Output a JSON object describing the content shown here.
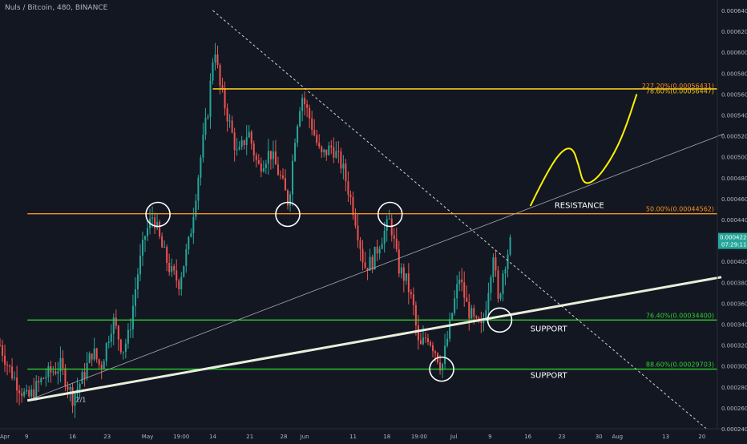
{
  "chart_data": {
    "type": "candlestick",
    "title": "Nuls / Bitcoin, 480, BINANCE",
    "ylim": [
      0.00024,
      0.00065
    ],
    "grid": false,
    "colors": {
      "background": "#131722",
      "up": "#26a69a",
      "down": "#ef5350",
      "axis_text": "#b2b5be",
      "resistance_line": "#f7931a",
      "fib_top_line": "#f5c518",
      "support_line": "#2fce2f",
      "trendline": "#e8eedb",
      "projection": "#fff200",
      "price_badge": "#26a69a",
      "circle": "#ffffff"
    },
    "y_ticks": [
      "0.00064000",
      "0.00062000",
      "0.00060000",
      "0.00058000",
      "0.00056000",
      "0.00054000",
      "0.00052000",
      "0.00050000",
      "0.00048000",
      "0.00046000",
      "0.00044000",
      "0.00042000",
      "0.00040000",
      "0.00038000",
      "0.00036000",
      "0.00034000",
      "0.00032000",
      "0.00030000",
      "0.00028000",
      "0.00026000",
      "0.00024000"
    ],
    "x_ticks": [
      {
        "label": "Apr",
        "t": 0
      },
      {
        "label": "9",
        "t": 33
      },
      {
        "label": "16",
        "t": 90
      },
      {
        "label": "23",
        "t": 133
      },
      {
        "label": "May",
        "t": 183
      },
      {
        "label": "19:00",
        "t": 225
      },
      {
        "label": "14",
        "t": 264
      },
      {
        "label": "21",
        "t": 310
      },
      {
        "label": "28",
        "t": 352
      },
      {
        "label": "Jun",
        "t": 378
      },
      {
        "label": "11",
        "t": 438
      },
      {
        "label": "18",
        "t": 480
      },
      {
        "label": "19:00",
        "t": 520
      },
      {
        "label": "Jul",
        "t": 563
      },
      {
        "label": "9",
        "t": 608
      },
      {
        "label": "16",
        "t": 655
      },
      {
        "label": "23",
        "t": 697
      },
      {
        "label": "30",
        "t": 743
      },
      {
        "label": "Aug",
        "t": 766
      },
      {
        "label": "13",
        "t": 826
      },
      {
        "label": "20",
        "t": 871
      }
    ],
    "t_range": [
      0,
      890
    ],
    "price_path": [
      [
        0,
        0.00032
      ],
      [
        10,
        0.0003
      ],
      [
        20,
        0.000285
      ],
      [
        34,
        0.000268
      ],
      [
        55,
        0.00029
      ],
      [
        75,
        0.0003
      ],
      [
        90,
        0.00027
      ],
      [
        102,
        0.000288
      ],
      [
        115,
        0.000315
      ],
      [
        125,
        0.000298
      ],
      [
        140,
        0.000345
      ],
      [
        152,
        0.000315
      ],
      [
        160,
        0.00033
      ],
      [
        170,
        0.000385
      ],
      [
        180,
        0.000425
      ],
      [
        190,
        0.000445
      ],
      [
        200,
        0.000415
      ],
      [
        212,
        0.00039
      ],
      [
        222,
        0.00038
      ],
      [
        235,
        0.00042
      ],
      [
        242,
        0.00046
      ],
      [
        250,
        0.000505
      ],
      [
        258,
        0.000545
      ],
      [
        266,
        0.00061
      ],
      [
        272,
        0.00057
      ],
      [
        282,
        0.00054
      ],
      [
        295,
        0.0005
      ],
      [
        308,
        0.000525
      ],
      [
        320,
        0.00049
      ],
      [
        335,
        0.000505
      ],
      [
        348,
        0.00048
      ],
      [
        358,
        0.000455
      ],
      [
        366,
        0.00052
      ],
      [
        374,
        0.00056
      ],
      [
        385,
        0.000535
      ],
      [
        398,
        0.0005
      ],
      [
        412,
        0.00051
      ],
      [
        425,
        0.00049
      ],
      [
        440,
        0.000445
      ],
      [
        452,
        0.000395
      ],
      [
        462,
        0.0004
      ],
      [
        472,
        0.00042
      ],
      [
        484,
        0.00044
      ],
      [
        494,
        0.000395
      ],
      [
        505,
        0.00038
      ],
      [
        513,
        0.000355
      ],
      [
        520,
        0.000315
      ],
      [
        530,
        0.00033
      ],
      [
        540,
        0.000315
      ],
      [
        548,
        0.000298
      ],
      [
        556,
        0.00033
      ],
      [
        562,
        0.000355
      ],
      [
        570,
        0.000385
      ],
      [
        580,
        0.000355
      ],
      [
        590,
        0.00034
      ],
      [
        598,
        0.000335
      ],
      [
        605,
        0.00037
      ],
      [
        612,
        0.00041
      ],
      [
        618,
        0.00036
      ],
      [
        625,
        0.000395
      ],
      [
        634,
        0.00042
      ]
    ],
    "last_price": "0.00042268",
    "countdown": "07:29:11",
    "fib_levels": [
      {
        "label": "227.20%(0.00056431)",
        "value": 0.00056431,
        "kind": "fib_top"
      },
      {
        "label": "78.60%(0.00056447)",
        "value": 0.00056447,
        "kind": "fib_top"
      },
      {
        "label": "50.00%(0.00044562)",
        "value": 0.00044562,
        "kind": "resistance"
      },
      {
        "label": "76.40%(0.00034400)",
        "value": 0.000344,
        "kind": "support"
      },
      {
        "label": "88.60%(0.00029703)",
        "value": 0.00029703,
        "kind": "support"
      }
    ],
    "annotations": {
      "resistance": "RESISTANCE",
      "support_upper": "SUPPORT",
      "support_lower": "SUPPORT",
      "small_label": "2/1"
    },
    "circled_points": [
      {
        "t": 196,
        "v": 0.000445
      },
      {
        "t": 357,
        "v": 0.000445
      },
      {
        "t": 484,
        "v": 0.000445
      },
      {
        "t": 620,
        "v": 0.000344
      },
      {
        "t": 548,
        "v": 0.000297
      }
    ],
    "trendlines": {
      "main_support": [
        [
          34,
          0.000267
        ],
        [
          895,
          0.000385
        ]
      ],
      "thin_rising": [
        [
          34,
          0.000267
        ],
        [
          898,
          0.000522
        ]
      ],
      "dotted_down": [
        [
          264,
          0.00064
        ],
        [
          878,
          0.000239
        ]
      ],
      "fib_anchor": [
        [
          264,
          0.000565
        ],
        [
          780,
          0.000565
        ]
      ]
    },
    "projection": [
      [
        658,
        0.000453
      ],
      [
        675,
        0.00048
      ],
      [
        695,
        0.000505
      ],
      [
        710,
        0.00051
      ],
      [
        718,
        0.000492
      ],
      [
        724,
        0.000473
      ],
      [
        740,
        0.000478
      ],
      [
        760,
        0.0005
      ],
      [
        775,
        0.000525
      ],
      [
        790,
        0.00056
      ]
    ]
  }
}
